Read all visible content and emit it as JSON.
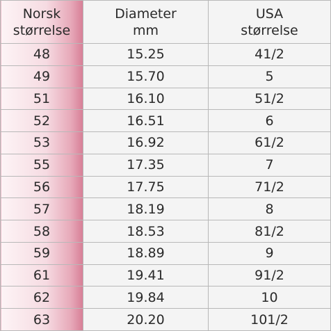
{
  "table": {
    "header": [
      [
        "Norsk",
        "størrelse"
      ],
      [
        "Diameter",
        "mm"
      ],
      [
        "USA",
        "størrelse"
      ]
    ],
    "rows": [
      [
        "48",
        "15.25",
        "41/2"
      ],
      [
        "49",
        "15.70",
        "5"
      ],
      [
        "51",
        "16.10",
        "51/2"
      ],
      [
        "52",
        "16.51",
        "6"
      ],
      [
        "53",
        "16.92",
        "61/2"
      ],
      [
        "55",
        "17.35",
        "7"
      ],
      [
        "56",
        "17.75",
        "71/2"
      ],
      [
        "57",
        "18.19",
        "8"
      ],
      [
        "58",
        "18.53",
        "81/2"
      ],
      [
        "59",
        "18.89",
        "9"
      ],
      [
        "61",
        "19.41",
        "91/2"
      ],
      [
        "62",
        "19.84",
        "10"
      ],
      [
        "63",
        "20.20",
        "101/2"
      ]
    ]
  }
}
